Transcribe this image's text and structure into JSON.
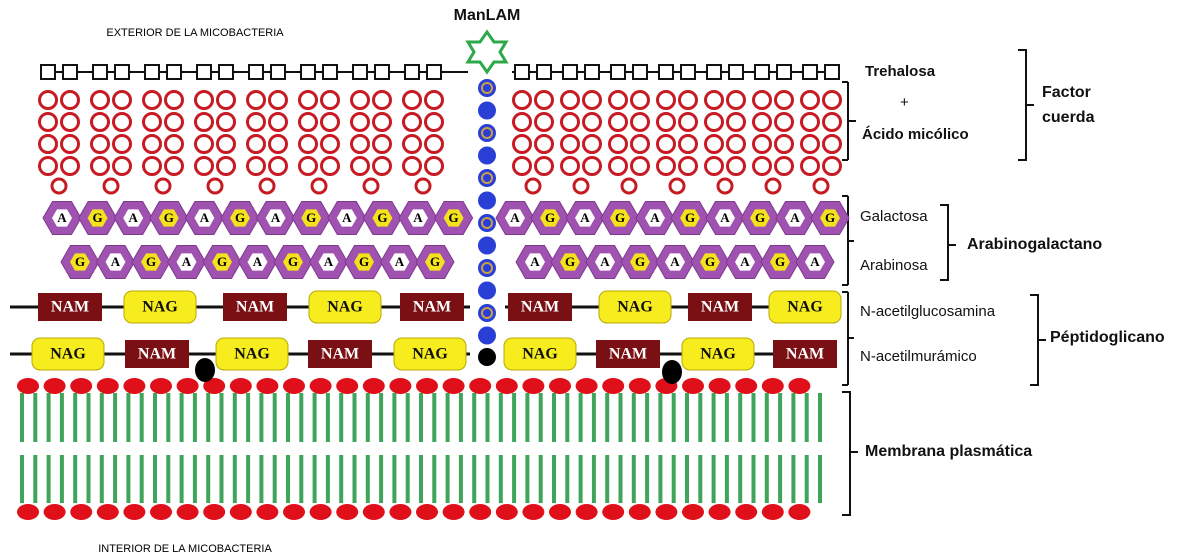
{
  "header": {
    "exterior": "EXTERIOR DE LA MICOBACTERIA",
    "manlam": "ManLAM",
    "interior": "INTERIOR DE LA MICOBACTERIA"
  },
  "legend": {
    "trehalosa": "Trehalosa",
    "plus": "+",
    "acido": "Ácido micólico",
    "factor": "Factor cuerda",
    "galactosa": "Galactosa",
    "arabinosa": "Arabinosa",
    "arabinogalactano": "Arabinogalactano",
    "nag": "N-acetilglucosamina",
    "nam": "N-acetilmurámico",
    "peptidoglicano": "Péptidoglicano",
    "membrana": "Membrana plasmática"
  },
  "arabinogalactan": {
    "rows": [
      {
        "left": [
          "A",
          "G",
          "A",
          "G",
          "A",
          "G",
          "A",
          "G",
          "A",
          "G",
          "A",
          "G"
        ],
        "right": [
          "A",
          "G",
          "A",
          "G",
          "A",
          "G",
          "A",
          "G",
          "A",
          "G"
        ]
      },
      {
        "left": [
          "G",
          "A",
          "G",
          "A",
          "G",
          "A",
          "G",
          "A",
          "G",
          "A",
          "G"
        ],
        "right": [
          "A",
          "G",
          "A",
          "G",
          "A",
          "G",
          "A",
          "G",
          "A"
        ]
      }
    ]
  },
  "peptidoglycan": {
    "rows": [
      {
        "left": [
          "NAM",
          "NAG",
          "NAM",
          "NAG",
          "NAM"
        ],
        "right": [
          "NAM",
          "NAG",
          "NAM",
          "NAG"
        ]
      },
      {
        "left": [
          "NAG",
          "NAM",
          "NAG",
          "NAM",
          "NAG"
        ],
        "right": [
          "NAG",
          "NAM",
          "NAG",
          "NAM"
        ]
      }
    ]
  }
}
